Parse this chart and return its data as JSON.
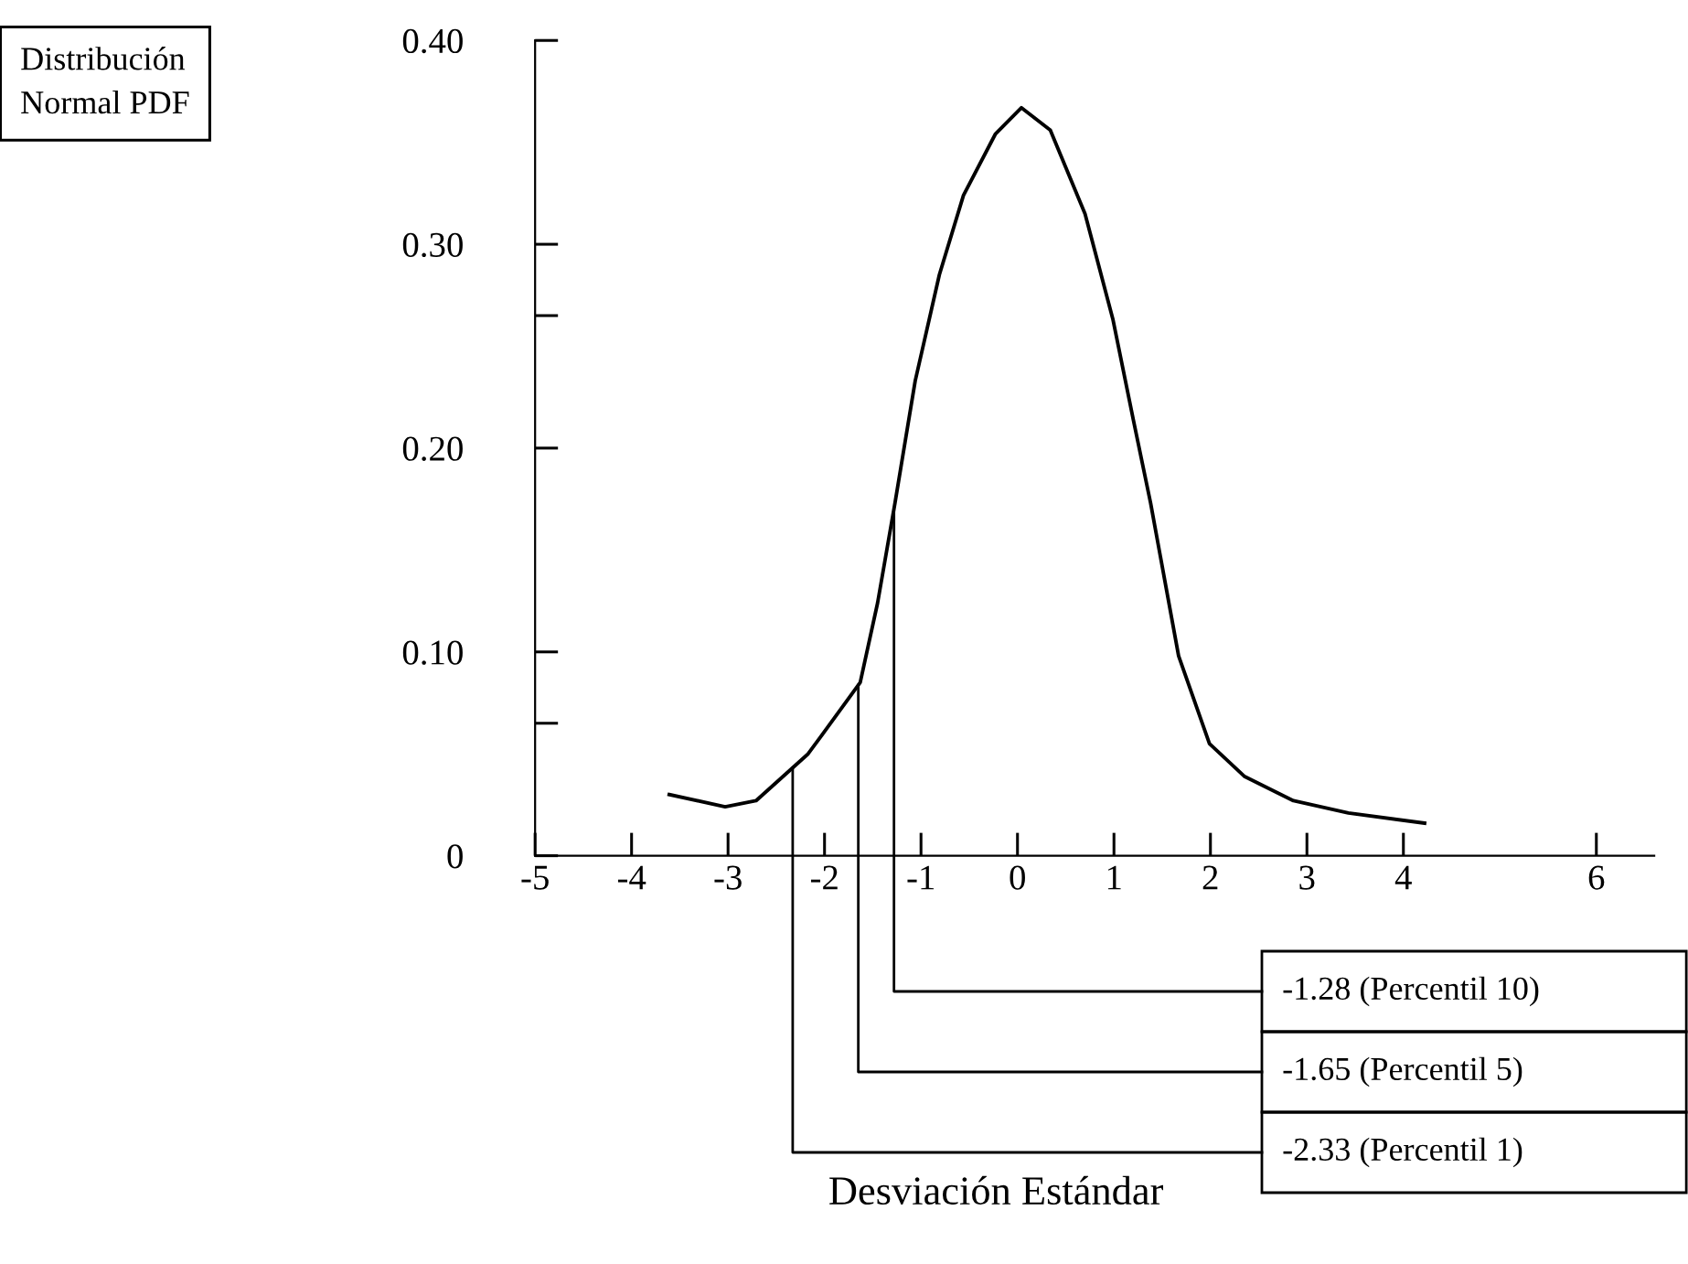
{
  "chart_data": {
    "type": "line",
    "title": "Distribución\nNormal PDF",
    "annotations": [
      "Desviación Estándar"
    ],
    "series": [
      {
        "color": "#000000",
        "x": [
          -3.61,
          -3.03,
          -2.71,
          -2.17,
          -2.03,
          -1.63,
          -1.45,
          -1.27,
          -1.06,
          -0.81,
          -0.56,
          -0.23,
          0.04,
          0.34,
          0.7,
          0.99,
          1.2,
          1.38,
          1.67,
          1.99,
          2.35,
          2.86,
          3.43,
          4.22
        ],
        "values": [
          0.03,
          0.024,
          0.027,
          0.05,
          0.059,
          0.085,
          0.124,
          0.173,
          0.233,
          0.285,
          0.324,
          0.354,
          0.367,
          0.356,
          0.315,
          0.263,
          0.214,
          0.173,
          0.098,
          0.055,
          0.039,
          0.027,
          0.021,
          0.016
        ]
      }
    ],
    "xlim": [
      -5,
      6.6
    ],
    "ylim": [
      0,
      0.4
    ],
    "xticks": [
      -5,
      -4,
      -3,
      -2,
      -1,
      0,
      1,
      2,
      3,
      4,
      6
    ],
    "yticks": [
      {
        "value": 0,
        "label": "0"
      },
      {
        "value": 0.065,
        "label": null
      },
      {
        "value": 0.1,
        "label": "0.10"
      },
      {
        "value": 0.2,
        "label": "0.20"
      },
      {
        "value": 0.265,
        "label": null
      },
      {
        "value": 0.3,
        "label": "0.30"
      },
      {
        "value": 0.4,
        "label": "0.40"
      }
    ],
    "ref_lines": [
      {
        "axis": "x",
        "value": -1.28,
        "label": "-1.28 (Percentil 10)"
      },
      {
        "axis": "x",
        "value": -1.65,
        "label": "-1.65 (Percentil 5)"
      },
      {
        "axis": "x",
        "value": -2.33,
        "label": "-2.33 (Percentil 1)"
      }
    ],
    "grid": false,
    "legend": false,
    "line_style": "solid"
  }
}
